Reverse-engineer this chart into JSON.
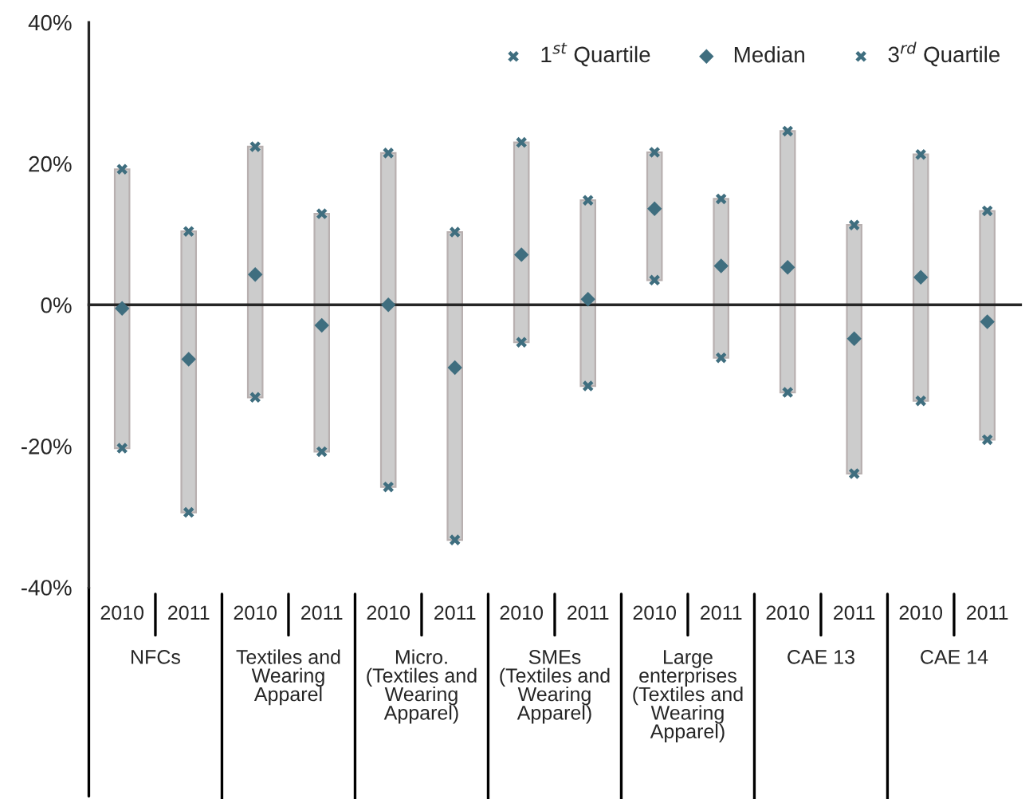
{
  "chart_data": {
    "type": "bar",
    "categories": [
      "2010",
      "2011",
      "2010",
      "2011",
      "2010",
      "2011",
      "2010",
      "2011",
      "2010",
      "2011",
      "2010",
      "2011",
      "2010",
      "2011"
    ],
    "series": [
      {
        "color": "#cccccc",
        "base": [
          -20.3,
          -29.4,
          -13.1,
          -20.8,
          -25.8,
          -33.3,
          -5.3,
          -11.5,
          3.5,
          -7.5,
          -12.4,
          -23.9,
          -13.6,
          -19.1
        ],
        "values": [
          39.5,
          39.8,
          35.5,
          33.7,
          47.3,
          43.6,
          28.3,
          26.3,
          18.1,
          22.5,
          37.0,
          35.2,
          34.9,
          32.4
        ]
      },
      {
        "type": "scatter",
        "name": "1$^{st}$ Quartile",
        "color": "#3f6e7f",
        "marker": "cross",
        "values": [
          -20.3,
          -29.4,
          -13.1,
          -20.8,
          -25.8,
          -33.3,
          -5.3,
          -11.5,
          3.5,
          -7.5,
          -12.4,
          -23.9,
          -13.6,
          -19.1
        ]
      },
      {
        "type": "scatter",
        "name": "Median",
        "color": "#3f6e7f",
        "marker": "diamond",
        "values": [
          -0.5,
          -7.7,
          4.3,
          -2.9,
          0,
          -8.9,
          7.1,
          0.8,
          13.6,
          5.5,
          5.3,
          -4.8,
          3.9,
          -2.4
        ]
      },
      {
        "type": "scatter",
        "name": "3$^{rd}$ Quartile",
        "color": "#3f6e7f",
        "marker": "cross",
        "values": [
          19.2,
          10.4,
          22.4,
          12.9,
          21.5,
          10.3,
          23.0,
          14.8,
          21.6,
          15.0,
          24.6,
          11.3,
          21.3,
          13.3
        ]
      }
    ],
    "ylim": [
      -40,
      40
    ],
    "yticks": [
      {
        "value": -40,
        "label": "-40%"
      },
      {
        "value": -20,
        "label": "-20%"
      },
      {
        "value": 0,
        "label": "0%"
      },
      {
        "value": 20,
        "label": "20%"
      },
      {
        "value": 40,
        "label": "40%"
      }
    ],
    "annotations": [
      "NFCs",
      "Textiles and\nWearing\nApparel",
      "Micro.\n(Textiles and\nWearing\nApparel)",
      "SMEs\n(Textiles and\nWearing\nApparel)",
      "Large\nenterprises\n(Textiles and\nWearing\nApparel)",
      "CAE 13",
      "CAE 14"
    ],
    "legend": "top right"
  }
}
